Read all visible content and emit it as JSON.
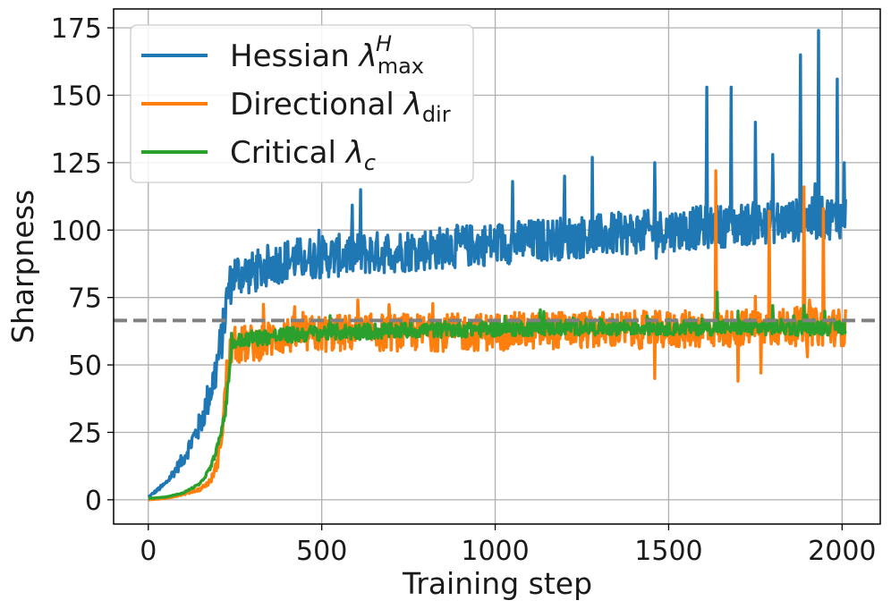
{
  "chart_data": {
    "type": "line",
    "title": "",
    "xlabel": "Training step",
    "ylabel": "Sharpness",
    "xlim": [
      -100,
      2110
    ],
    "ylim": [
      -9,
      182
    ],
    "xticks": [
      0,
      500,
      1000,
      1500,
      2000
    ],
    "xtick_labels": [
      "0",
      "500",
      "1000",
      "1500",
      "2000"
    ],
    "yticks": [
      0,
      25,
      50,
      75,
      100,
      125,
      150,
      175
    ],
    "ytick_labels": [
      "0",
      "25",
      "50",
      "75",
      "100",
      "125",
      "150",
      "175"
    ],
    "grid": true,
    "legend_position": "top-left",
    "threshold": {
      "value": 66.5,
      "style": "dashed",
      "color": "#808080"
    },
    "series": [
      {
        "name": "Hessian",
        "legend_symbol": "λ",
        "legend_sub": "max",
        "legend_sup": "H",
        "color": "#1f77b4",
        "noise": 8,
        "points": [
          [
            0,
            1
          ],
          [
            50,
            6
          ],
          [
            100,
            15
          ],
          [
            150,
            28
          ],
          [
            190,
            45
          ],
          [
            215,
            62
          ],
          [
            230,
            78
          ],
          [
            250,
            84
          ],
          [
            300,
            84
          ],
          [
            350,
            87
          ],
          [
            400,
            89
          ],
          [
            500,
            90
          ],
          [
            600,
            91
          ],
          [
            700,
            92
          ],
          [
            800,
            93
          ],
          [
            900,
            94
          ],
          [
            1000,
            95
          ],
          [
            1100,
            96
          ],
          [
            1200,
            97
          ],
          [
            1300,
            98
          ],
          [
            1400,
            99
          ],
          [
            1500,
            100
          ],
          [
            1600,
            101
          ],
          [
            1700,
            102
          ],
          [
            1800,
            103
          ],
          [
            1900,
            104
          ],
          [
            2010,
            105
          ]
        ],
        "spikes": [
          [
            612,
            115
          ],
          [
            1050,
            118
          ],
          [
            1200,
            120
          ],
          [
            1280,
            127
          ],
          [
            1460,
            125
          ],
          [
            1610,
            153
          ],
          [
            1680,
            153
          ],
          [
            1750,
            140
          ],
          [
            1800,
            128
          ],
          [
            1880,
            165
          ],
          [
            1932,
            174
          ],
          [
            1985,
            156
          ],
          [
            2005,
            125
          ]
        ]
      },
      {
        "name": "Directional",
        "legend_symbol": "λ",
        "legend_sub": "dir",
        "legend_sup": "",
        "color": "#ff7f0e",
        "noise": 7,
        "points": [
          [
            0,
            0
          ],
          [
            50,
            0.5
          ],
          [
            100,
            2
          ],
          [
            150,
            4
          ],
          [
            180,
            7
          ],
          [
            200,
            14
          ],
          [
            215,
            28
          ],
          [
            225,
            45
          ],
          [
            240,
            57
          ],
          [
            300,
            58
          ],
          [
            400,
            61
          ],
          [
            600,
            62
          ],
          [
            900,
            62
          ],
          [
            1200,
            63
          ],
          [
            1500,
            63
          ],
          [
            1800,
            64
          ],
          [
            2010,
            64
          ]
        ],
        "spikes": [
          [
            1635,
            122
          ],
          [
            1700,
            44
          ],
          [
            1790,
            107
          ],
          [
            1890,
            116
          ],
          [
            1945,
            108
          ],
          [
            1765,
            47
          ],
          [
            1460,
            45
          ],
          [
            1900,
            53
          ]
        ]
      },
      {
        "name": "Critical",
        "legend_symbol": "λ",
        "legend_sub": "c",
        "legend_sup": "",
        "color": "#2ca02c",
        "noise": 3,
        "points": [
          [
            0,
            0.5
          ],
          [
            50,
            1
          ],
          [
            100,
            2.5
          ],
          [
            150,
            6
          ],
          [
            180,
            12
          ],
          [
            205,
            22
          ],
          [
            225,
            35
          ],
          [
            240,
            58
          ],
          [
            300,
            60
          ],
          [
            500,
            62
          ],
          [
            800,
            63
          ],
          [
            1200,
            64
          ],
          [
            1600,
            64
          ],
          [
            2010,
            64
          ]
        ],
        "spikes": [
          [
            1640,
            77
          ],
          [
            1700,
            70
          ],
          [
            1800,
            72
          ],
          [
            1890,
            72
          ]
        ]
      }
    ]
  }
}
